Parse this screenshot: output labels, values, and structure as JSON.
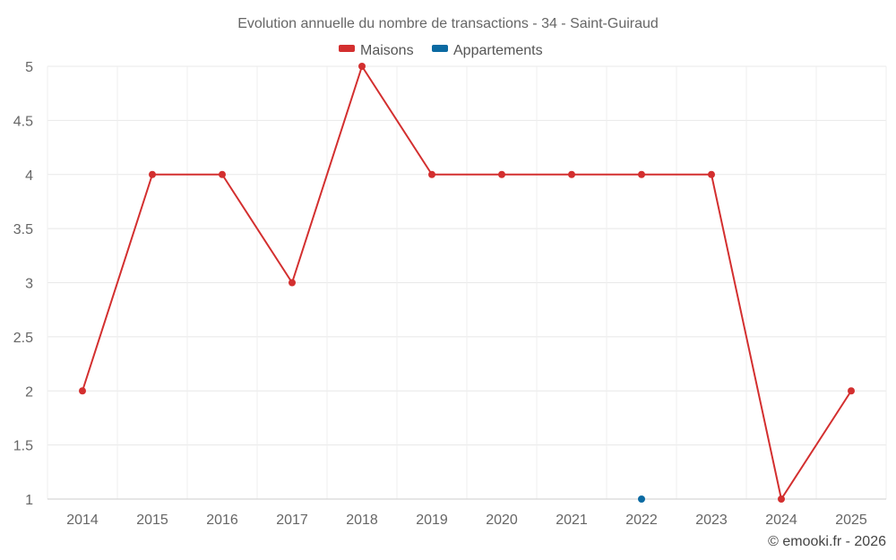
{
  "chart_data": {
    "type": "line",
    "title": "Evolution annuelle du nombre de transactions - 34 - Saint-Guiraud",
    "categories": [
      "2014",
      "2015",
      "2016",
      "2017",
      "2018",
      "2019",
      "2020",
      "2021",
      "2022",
      "2023",
      "2024",
      "2025"
    ],
    "series": [
      {
        "name": "Maisons",
        "color": "#d32f2f",
        "values": [
          2,
          4,
          4,
          3,
          5,
          4,
          4,
          4,
          4,
          4,
          1,
          2
        ]
      },
      {
        "name": "Appartements",
        "color": "#0b6aa2",
        "values": [
          null,
          null,
          null,
          null,
          null,
          null,
          null,
          null,
          1,
          null,
          null,
          null
        ]
      }
    ],
    "ylim": [
      1,
      5
    ],
    "yticks": [
      "1",
      "1.5",
      "2",
      "2.5",
      "3",
      "3.5",
      "4",
      "4.5",
      "5"
    ],
    "grid": true,
    "legend_position": "top-center"
  },
  "credit": "© emooki.fr - 2026"
}
